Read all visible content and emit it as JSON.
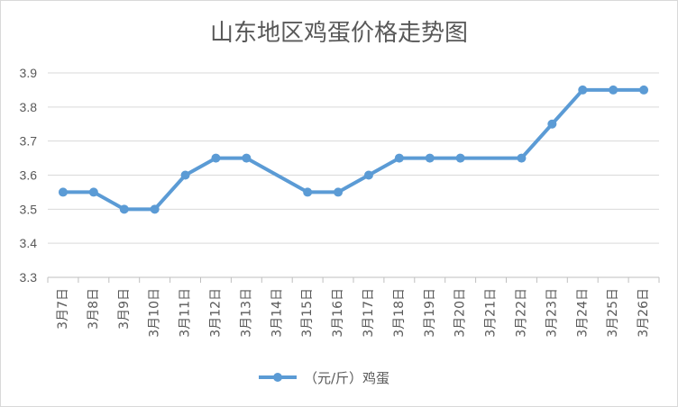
{
  "chart_data": {
    "type": "line",
    "title": "山东地区鸡蛋价格走势图",
    "xlabel": "",
    "ylabel": "",
    "categories": [
      "3月7日",
      "3月8日",
      "3月9日",
      "3月10日",
      "3月11日",
      "3月12日",
      "3月13日",
      "3月14日",
      "3月15日",
      "3月16日",
      "3月17日",
      "3月18日",
      "3月19日",
      "3月20日",
      "3月21日",
      "3月22日",
      "3月23日",
      "3月24日",
      "3月25日",
      "3月26日"
    ],
    "series": [
      {
        "name": "（元/斤）鸡蛋",
        "values": [
          3.55,
          3.55,
          3.5,
          3.5,
          3.6,
          3.65,
          3.65,
          null,
          3.55,
          3.55,
          3.6,
          3.65,
          3.65,
          3.65,
          null,
          3.65,
          3.75,
          3.85,
          3.85,
          3.85
        ],
        "color": "#5b9bd5"
      }
    ],
    "ylim": [
      3.3,
      3.9
    ],
    "yticks": [
      "3.3",
      "3.4",
      "3.5",
      "3.6",
      "3.7",
      "3.8",
      "3.9"
    ],
    "grid": true,
    "legend_position": "bottom",
    "line_connects_gaps": true
  }
}
